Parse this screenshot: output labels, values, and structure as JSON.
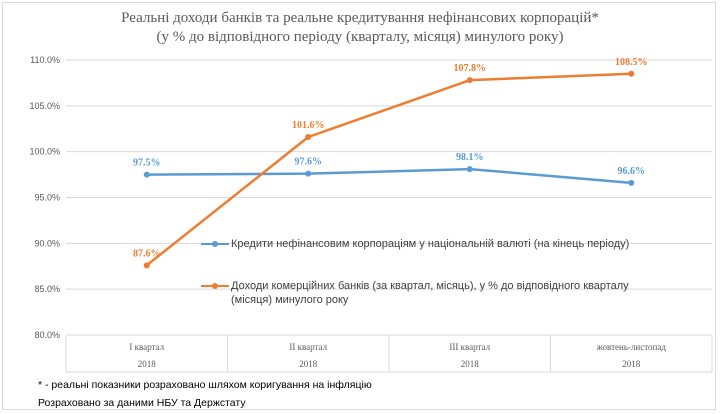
{
  "chart_data": {
    "type": "line",
    "title_line1": "Реальні доходи банків та реальне кредитування нефінансових корпорацій*",
    "title_line2": "(у % до відповідного періоду (кварталу, місяця) минулого року)",
    "categories": [
      {
        "label": "I квартал",
        "year": "2018"
      },
      {
        "label": "II квартал",
        "year": "2018"
      },
      {
        "label": "III квартал",
        "year": "2018"
      },
      {
        "label": "жовтень-листопад",
        "year": "2018"
      }
    ],
    "ylim": [
      80.0,
      110.0
    ],
    "yticks": [
      80.0,
      85.0,
      90.0,
      95.0,
      100.0,
      105.0,
      110.0
    ],
    "ytick_labels": [
      "80.0%",
      "85.0%",
      "90.0%",
      "95.0%",
      "100.0%",
      "105.0%",
      "110.0%"
    ],
    "grid": true,
    "series": [
      {
        "name": "Кредити нефінансовим корпораціям у національній валюті (на кінець періоду)",
        "color": "#5b9bd5",
        "values": [
          97.5,
          97.6,
          98.1,
          96.6
        ],
        "labels": [
          "97.5%",
          "97.6%",
          "98.1%",
          "96.6%"
        ]
      },
      {
        "name_line1": "Доходи комерційних банків (за квартал, місяць), у % до відповідного кварталу",
        "name_line2": "(місяця) минулого року",
        "color": "#ed7d31",
        "values": [
          87.6,
          101.6,
          107.8,
          108.5
        ],
        "labels": [
          "87.6%",
          "101.6%",
          "107.8%",
          "108.5%"
        ]
      }
    ]
  },
  "footnotes": {
    "note1": "* - реальні показники розраховано шляхом коригування на інфляцію",
    "note2": "Розраховано за даними НБУ та Держстату"
  }
}
